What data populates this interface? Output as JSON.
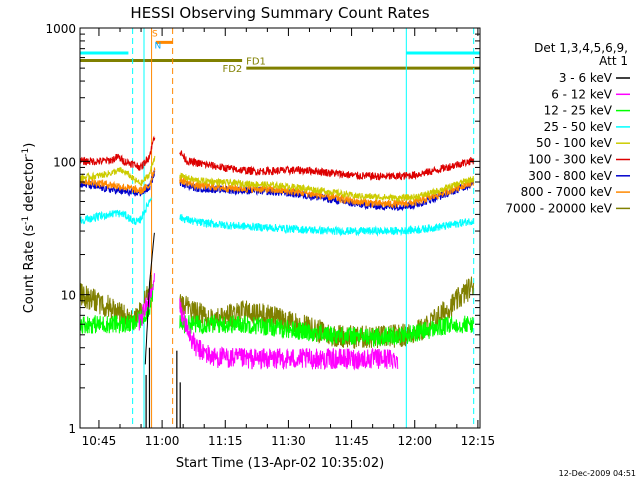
{
  "chart_data": {
    "type": "line",
    "title": "HESSI Observing Summary Count Rates",
    "xlabel": "Start Time (13-Apr-02 10:35:02)",
    "ylabel_main": "Count Rate (s",
    "ylabel_sup1": "-1",
    "ylabel_mid": " detector",
    "ylabel_sup2": "-1",
    "ylabel_end": ")",
    "yscale": "log",
    "ylim": [
      1,
      1000
    ],
    "xlim_minutes": [
      40.5,
      135.5
    ],
    "x_ticks": [
      {
        "m": 45,
        "label": "10:45"
      },
      {
        "m": 60,
        "label": "11:00"
      },
      {
        "m": 75,
        "label": "11:15"
      },
      {
        "m": 90,
        "label": "11:30"
      },
      {
        "m": 105,
        "label": "11:45"
      },
      {
        "m": 120,
        "label": "12:00"
      },
      {
        "m": 135,
        "label": "12:15"
      }
    ],
    "y_ticks": [
      {
        "v": 1,
        "label": "1"
      },
      {
        "v": 10,
        "label": "10"
      },
      {
        "v": 100,
        "label": "100"
      },
      {
        "v": 1000,
        "label": "1000"
      }
    ],
    "legend": {
      "header": [
        "Det 1,3,4,5,6,9,",
        "Att 1"
      ],
      "entries": [
        {
          "label": "3 - 6 keV",
          "color": "#000000"
        },
        {
          "label": "6 - 12 keV",
          "color": "#ff00ff"
        },
        {
          "label": "12 - 25 keV",
          "color": "#00ff00"
        },
        {
          "label": "25 - 50 keV",
          "color": "#00ffff"
        },
        {
          "label": "50 - 100 keV",
          "color": "#cccc00"
        },
        {
          "label": "100 - 300 keV",
          "color": "#dd0000"
        },
        {
          "label": "300 - 800 keV",
          "color": "#0000cc"
        },
        {
          "label": "800 - 7000 keV",
          "color": "#ff8800"
        },
        {
          "label": "7000 - 20000 keV",
          "color": "#808000"
        }
      ]
    },
    "flag_bars": [
      {
        "label": "",
        "color": "#00ffff",
        "y": 650,
        "x0": 40.5,
        "x1": 52
      },
      {
        "label": "",
        "color": "#00ffff",
        "y": 650,
        "x0": 118,
        "x1": 135.5
      },
      {
        "label": "",
        "color": "#ff8800",
        "y": 780,
        "x0": 58.5,
        "x1": 62.5
      },
      {
        "label": "FD1",
        "color": "#808000",
        "y": 570,
        "x0": 40.5,
        "x1": 79
      },
      {
        "label": "FD2",
        "color": "#808000",
        "y": 500,
        "x0": 80,
        "x1": 135.5
      }
    ],
    "flag_labels": [
      {
        "text": "S",
        "color": "#ff8800",
        "m": 57.6,
        "y": 860
      },
      {
        "text": "N",
        "color": "#00aaff",
        "m": 58.2,
        "y": 700
      }
    ],
    "vlines": [
      {
        "m": 53.0,
        "color": "#00ffff",
        "style": "dashed"
      },
      {
        "m": 55.7,
        "color": "#00ffff",
        "style": "solid"
      },
      {
        "m": 57.5,
        "color": "#ff8800",
        "style": "solid"
      },
      {
        "m": 62.5,
        "color": "#ff8800",
        "style": "dashed"
      },
      {
        "m": 118.0,
        "color": "#00ffff",
        "style": "solid"
      },
      {
        "m": 134.0,
        "color": "#00ffff",
        "style": "dashed"
      }
    ],
    "gap": [
      58.5,
      64.0
    ],
    "series": [
      {
        "name": "7000 - 20000 keV",
        "color": "#808000",
        "noise": 0.09,
        "points": [
          [
            40.5,
            10
          ],
          [
            44,
            9
          ],
          [
            48,
            8
          ],
          [
            51,
            7
          ],
          [
            53,
            6.5
          ],
          [
            54.5,
            7
          ],
          [
            56,
            9
          ],
          [
            57.5,
            12
          ],
          [
            64.2,
            9
          ],
          [
            67,
            7.5
          ],
          [
            72,
            6.5
          ],
          [
            77,
            7
          ],
          [
            80,
            7.5
          ],
          [
            84,
            7
          ],
          [
            88,
            6.5
          ],
          [
            92,
            6
          ],
          [
            96,
            5.5
          ],
          [
            100,
            5
          ],
          [
            106,
            4.8
          ],
          [
            112,
            4.8
          ],
          [
            118,
            5
          ],
          [
            122,
            5.5
          ],
          [
            126,
            7
          ],
          [
            130,
            9
          ],
          [
            134,
            12
          ]
        ]
      },
      {
        "name": "12 - 25 keV",
        "color": "#00ff00",
        "noise": 0.07,
        "points": [
          [
            40.5,
            6
          ],
          [
            48,
            6
          ],
          [
            53,
            6
          ],
          [
            55,
            6.5
          ],
          [
            57,
            8
          ],
          [
            58,
            11
          ],
          [
            64.2,
            6
          ],
          [
            70,
            6
          ],
          [
            80,
            6
          ],
          [
            90,
            5.5
          ],
          [
            100,
            5
          ],
          [
            110,
            4.8
          ],
          [
            118,
            5
          ],
          [
            124,
            5.5
          ],
          [
            130,
            6
          ],
          [
            134,
            6
          ]
        ]
      },
      {
        "name": "6 - 12 keV",
        "color": "#ff00ff",
        "noise": 0.08,
        "points": [
          [
            54.5,
            6
          ],
          [
            56,
            8
          ],
          [
            57.5,
            10
          ],
          [
            58.2,
            13
          ],
          [
            64.2,
            8
          ],
          [
            66,
            5.5
          ],
          [
            68,
            4
          ],
          [
            72,
            3.4
          ],
          [
            80,
            3.3
          ],
          [
            90,
            3.3
          ],
          [
            100,
            3.3
          ],
          [
            110,
            3.3
          ],
          [
            116,
            3.3
          ]
        ]
      },
      {
        "name": "3 - 6 keV",
        "color": "#000000",
        "noise": 0.0,
        "points": [
          [
            56,
            3
          ],
          [
            57,
            12
          ],
          [
            58.2,
            30
          ]
        ]
      },
      {
        "name": "25 - 50 keV",
        "color": "#00ffff",
        "noise": 0.03,
        "points": [
          [
            40.5,
            36
          ],
          [
            46,
            39
          ],
          [
            49,
            41
          ],
          [
            51,
            40
          ],
          [
            53,
            36
          ],
          [
            54.5,
            35
          ],
          [
            56,
            43
          ],
          [
            57.5,
            55
          ],
          [
            64.2,
            38
          ],
          [
            68,
            35
          ],
          [
            76,
            33
          ],
          [
            84,
            32
          ],
          [
            92,
            31
          ],
          [
            100,
            30
          ],
          [
            108,
            30
          ],
          [
            116,
            30
          ],
          [
            122,
            31
          ],
          [
            128,
            33
          ],
          [
            132,
            35
          ],
          [
            134,
            36
          ]
        ]
      },
      {
        "name": "300 - 800 keV",
        "color": "#0000cc",
        "noise": 0.03,
        "points": [
          [
            40.5,
            68
          ],
          [
            46,
            63
          ],
          [
            50,
            60
          ],
          [
            53,
            58
          ],
          [
            55,
            58
          ],
          [
            57,
            64
          ],
          [
            58.3,
            85
          ],
          [
            64.2,
            70
          ],
          [
            68,
            63
          ],
          [
            76,
            61
          ],
          [
            84,
            60
          ],
          [
            92,
            57
          ],
          [
            100,
            52
          ],
          [
            106,
            48
          ],
          [
            112,
            46
          ],
          [
            116,
            46
          ],
          [
            120,
            47
          ],
          [
            124,
            52
          ],
          [
            128,
            58
          ],
          [
            132,
            65
          ],
          [
            134,
            68
          ]
        ]
      },
      {
        "name": "800 - 7000 keV",
        "color": "#ff8800",
        "noise": 0.03,
        "points": [
          [
            40.5,
            72
          ],
          [
            46,
            68
          ],
          [
            50,
            65
          ],
          [
            53,
            62
          ],
          [
            55,
            60
          ],
          [
            57,
            66
          ],
          [
            58.3,
            90
          ],
          [
            64.2,
            73
          ],
          [
            68,
            66
          ],
          [
            76,
            63
          ],
          [
            84,
            62
          ],
          [
            92,
            59
          ],
          [
            100,
            54
          ],
          [
            106,
            50
          ],
          [
            112,
            48
          ],
          [
            116,
            48
          ],
          [
            120,
            49
          ],
          [
            124,
            54
          ],
          [
            128,
            60
          ],
          [
            132,
            67
          ],
          [
            134,
            70
          ]
        ]
      },
      {
        "name": "50 - 100 keV",
        "color": "#cccc00",
        "noise": 0.025,
        "points": [
          [
            40.5,
            75
          ],
          [
            45,
            78
          ],
          [
            48,
            82
          ],
          [
            50,
            86
          ],
          [
            52,
            80
          ],
          [
            53.5,
            72
          ],
          [
            55,
            68
          ],
          [
            57,
            80
          ],
          [
            58.3,
            110
          ],
          [
            64.2,
            78
          ],
          [
            68,
            72
          ],
          [
            76,
            69
          ],
          [
            84,
            67
          ],
          [
            92,
            64
          ],
          [
            100,
            59
          ],
          [
            106,
            55
          ],
          [
            112,
            54
          ],
          [
            116,
            53
          ],
          [
            120,
            54
          ],
          [
            124,
            58
          ],
          [
            128,
            64
          ],
          [
            132,
            71
          ],
          [
            134,
            74
          ]
        ]
      },
      {
        "name": "100 - 300 keV",
        "color": "#dd0000",
        "noise": 0.03,
        "points": [
          [
            40.5,
            100
          ],
          [
            45,
            100
          ],
          [
            48,
            102
          ],
          [
            49.5,
            108
          ],
          [
            51,
            100
          ],
          [
            53,
            96
          ],
          [
            55,
            90
          ],
          [
            57,
            110
          ],
          [
            58.3,
            160
          ],
          [
            64.2,
            118
          ],
          [
            66,
            100
          ],
          [
            70,
            95
          ],
          [
            76,
            88
          ],
          [
            82,
            84
          ],
          [
            88,
            85
          ],
          [
            92,
            86
          ],
          [
            96,
            85
          ],
          [
            100,
            82
          ],
          [
            106,
            78
          ],
          [
            112,
            77
          ],
          [
            116,
            77
          ],
          [
            120,
            79
          ],
          [
            124,
            84
          ],
          [
            128,
            91
          ],
          [
            132,
            98
          ],
          [
            134,
            102
          ]
        ]
      }
    ]
  },
  "footer": {
    "date_stamp": "12-Dec-2009 04:51"
  }
}
